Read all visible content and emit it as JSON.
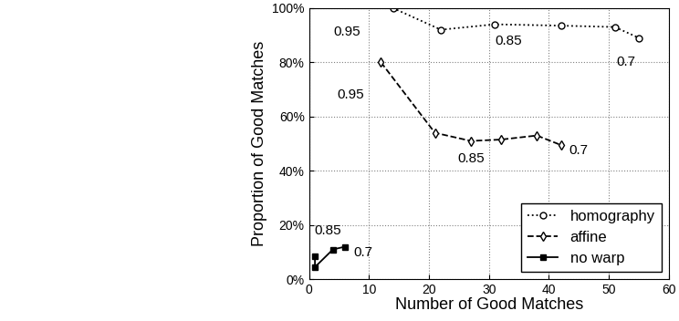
{
  "chart_data": {
    "type": "line",
    "xlabel": "Number of Good Matches",
    "ylabel": "Proportion of Good Matches",
    "xlim": [
      0,
      60
    ],
    "xticks": [
      0,
      10,
      20,
      30,
      40,
      50,
      60
    ],
    "ylim": [
      0,
      100
    ],
    "yticks": [
      {
        "value": 0,
        "label": "0%"
      },
      {
        "value": 20,
        "label": "20%"
      },
      {
        "value": 40,
        "label": "40%"
      },
      {
        "value": 60,
        "label": "60%"
      },
      {
        "value": 80,
        "label": "80%"
      },
      {
        "value": 100,
        "label": "100%"
      }
    ],
    "grid": true,
    "legend": "lower right",
    "series": [
      {
        "name": "homography",
        "color": "#000000",
        "marker": "circle",
        "line_style": "dotted",
        "x": [
          14,
          22,
          31,
          42,
          51,
          55
        ],
        "values": [
          100,
          92,
          94,
          93.5,
          93,
          89
        ]
      },
      {
        "name": "affine",
        "color": "#000000",
        "marker": "diamond",
        "line_style": "dashed",
        "x": [
          12,
          21,
          27,
          32,
          38,
          42
        ],
        "values": [
          80,
          54,
          51,
          51.5,
          53,
          49.5
        ]
      },
      {
        "name": "no warp",
        "color": "#000000",
        "marker": "square",
        "line_style": "solid",
        "x": [
          1,
          1,
          4,
          6
        ],
        "values": [
          8.5,
          4.5,
          11,
          12
        ]
      }
    ],
    "annotations": [
      {
        "text": "0.95",
        "series": "homography",
        "x": 14,
        "y": 100
      },
      {
        "text": "0.85",
        "series": "homography",
        "x": 31,
        "y": 94
      },
      {
        "text": "0.7",
        "series": "homography",
        "x": 55,
        "y": 89
      },
      {
        "text": "0.95",
        "series": "affine",
        "x": 12,
        "y": 80
      },
      {
        "text": "0.85",
        "series": "affine",
        "x": 27,
        "y": 51
      },
      {
        "text": "0.7",
        "series": "affine",
        "x": 42,
        "y": 49.5
      },
      {
        "text": "0.85",
        "series": "no warp",
        "x": 1,
        "y": 8.5
      },
      {
        "text": "0.7",
        "series": "no warp",
        "x": 6,
        "y": 12
      }
    ]
  }
}
